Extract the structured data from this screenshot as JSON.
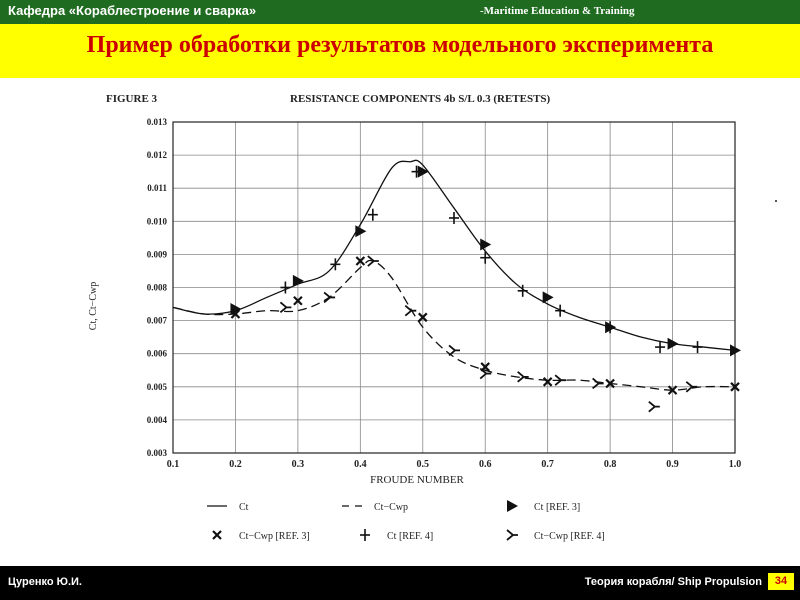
{
  "header": {
    "department": "Кафедра «Кораблестроение и сварка»",
    "met": "-Maritime Education & Training"
  },
  "title": "Пример обработки результатов модельного эксперимента",
  "footer": {
    "author": "Цуренко Ю.И.",
    "course": "Теория корабля/ Ship Propulsion",
    "page": "34"
  },
  "colors": {
    "topbar": "#1f6b1f",
    "titlebar": "#ffff00",
    "title_text": "#cc0000",
    "footer": "#000000"
  },
  "chart_data": {
    "type": "line",
    "figure_label": "FIGURE 3",
    "title": "RESISTANCE COMPONENTS 4b S/L 0.3 (RETESTS)",
    "xlabel": "FROUDE NUMBER",
    "ylabel": "Ct, Ct−Cwp",
    "xlim": [
      0.1,
      1.0
    ],
    "ylim": [
      0.003,
      0.013
    ],
    "xticks": [
      "0.1",
      "0.2",
      "0.3",
      "0.4",
      "0.5",
      "0.6",
      "0.7",
      "0.8",
      "0.9",
      "1.0"
    ],
    "yticks": [
      "0.003",
      "0.004",
      "0.005",
      "0.006",
      "0.007",
      "0.008",
      "0.009",
      "0.010",
      "0.011",
      "0.012",
      "0.013"
    ],
    "grid": true,
    "legend_position": "bottom",
    "series": [
      {
        "name": "Ct",
        "kind": "line",
        "style": "solid",
        "x": [
          0.1,
          0.15,
          0.2,
          0.25,
          0.3,
          0.35,
          0.4,
          0.45,
          0.48,
          0.5,
          0.55,
          0.6,
          0.65,
          0.7,
          0.75,
          0.8,
          0.85,
          0.9,
          0.95,
          1.0
        ],
        "y": [
          0.0074,
          0.0072,
          0.0073,
          0.0077,
          0.0081,
          0.0085,
          0.0099,
          0.0116,
          0.0118,
          0.0117,
          0.0104,
          0.0091,
          0.0081,
          0.0075,
          0.0071,
          0.0068,
          0.0065,
          0.0063,
          0.0062,
          0.0061
        ]
      },
      {
        "name": "Ct−Cwp",
        "kind": "line",
        "style": "dashed",
        "x": [
          0.1,
          0.15,
          0.2,
          0.25,
          0.3,
          0.35,
          0.4,
          0.42,
          0.45,
          0.5,
          0.55,
          0.6,
          0.65,
          0.7,
          0.75,
          0.8,
          0.85,
          0.9,
          0.95,
          1.0
        ],
        "y": [
          0.0074,
          0.0072,
          0.0072,
          0.0073,
          0.0073,
          0.0077,
          0.0086,
          0.0088,
          0.0083,
          0.0068,
          0.0059,
          0.0055,
          0.0053,
          0.0052,
          0.0052,
          0.0051,
          0.005,
          0.0049,
          0.005,
          0.005
        ]
      },
      {
        "name": "Ct [REF. 3]",
        "kind": "marker",
        "marker": "triangle",
        "x": [
          0.2,
          0.3,
          0.4,
          0.5,
          0.6,
          0.7,
          0.8,
          0.9,
          1.0
        ],
        "y": [
          0.00735,
          0.0082,
          0.0097,
          0.0115,
          0.0093,
          0.0077,
          0.0068,
          0.0063,
          0.0061
        ]
      },
      {
        "name": "Ct−Cwp [REF. 3]",
        "kind": "marker",
        "marker": "x",
        "x": [
          0.2,
          0.3,
          0.4,
          0.5,
          0.6,
          0.7,
          0.8,
          0.9,
          1.0
        ],
        "y": [
          0.0072,
          0.0076,
          0.0088,
          0.0071,
          0.0056,
          0.00515,
          0.0051,
          0.0049,
          0.005
        ]
      },
      {
        "name": "Ct [REF. 4]",
        "kind": "marker",
        "marker": "plus",
        "x": [
          0.28,
          0.36,
          0.42,
          0.49,
          0.55,
          0.6,
          0.66,
          0.72,
          0.8,
          0.88,
          0.94
        ],
        "y": [
          0.008,
          0.0087,
          0.0102,
          0.0115,
          0.0101,
          0.0089,
          0.0079,
          0.0073,
          0.0068,
          0.0062,
          0.0062
        ],
        "note": ""
      },
      {
        "name": "Ct−Cwp [REF. 4]",
        "kind": "marker",
        "marker": "y",
        "x": [
          0.28,
          0.35,
          0.42,
          0.48,
          0.55,
          0.6,
          0.66,
          0.72,
          0.78,
          0.87,
          0.93
        ],
        "y": [
          0.0074,
          0.0077,
          0.0088,
          0.0073,
          0.0061,
          0.0054,
          0.0053,
          0.0052,
          0.0051,
          0.0044,
          0.005
        ]
      }
    ]
  }
}
